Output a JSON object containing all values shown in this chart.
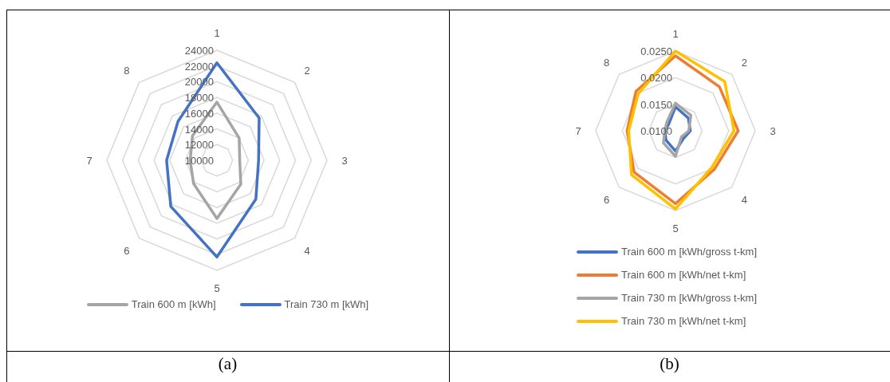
{
  "chart_data": [
    {
      "type": "radar",
      "categories": [
        "1",
        "2",
        "3",
        "4",
        "5",
        "6",
        "7",
        "8"
      ],
      "ylim": [
        10000,
        24000
      ],
      "yticks": [
        10000,
        12000,
        14000,
        16000,
        18000,
        20000,
        22000,
        24000
      ],
      "grid": true,
      "legend": "bottom",
      "marker": "none",
      "annotations": [
        "(a)"
      ],
      "series": [
        {
          "name": "Train 600 m [kWh]",
          "color": "#a5a5a5",
          "values": [
            17400,
            14000,
            12900,
            14300,
            17400,
            14200,
            13400,
            14400
          ]
        },
        {
          "name": "Train 730 m [kWh]",
          "color": "#4472c4",
          "values": [
            22400,
            17600,
            15300,
            17000,
            22300,
            18300,
            16400,
            17000
          ]
        }
      ]
    },
    {
      "type": "radar",
      "categories": [
        "1",
        "2",
        "3",
        "4",
        "5",
        "6",
        "7",
        "8"
      ],
      "ylim": [
        0.01,
        0.025
      ],
      "yticks": [
        {
          "value": 0.01,
          "label": "0.0100"
        },
        {
          "value": 0.015,
          "label": "0.0150"
        },
        {
          "value": 0.02,
          "label": "0.0200"
        },
        {
          "value": 0.025,
          "label": "0.0250"
        }
      ],
      "grid": true,
      "legend": "bottom",
      "marker": "none",
      "annotations": [
        "(b)"
      ],
      "series": [
        {
          "name": "Train 600 m [kWh/gross t-km]",
          "color": "#4472c4",
          "values": [
            0.0145,
            0.0134,
            0.0128,
            0.0121,
            0.0138,
            0.0125,
            0.012,
            0.0118
          ]
        },
        {
          "name": "Train 600 m [kWh/net t-km]",
          "color": "#ed7d31",
          "values": [
            0.0241,
            0.0217,
            0.0218,
            0.0203,
            0.0237,
            0.021,
            0.0191,
            0.0205
          ]
        },
        {
          "name": "Train 730 m [kWh/gross t-km]",
          "color": "#a5a5a5",
          "values": [
            0.0152,
            0.0141,
            0.0125,
            0.0116,
            0.0148,
            0.0132,
            0.012,
            0.0123
          ]
        },
        {
          "name": "Train 730 m [kWh/net t-km]",
          "color": "#ffc000",
          "values": [
            0.025,
            0.0231,
            0.021,
            0.0197,
            0.0247,
            0.0217,
            0.0188,
            0.0199
          ]
        }
      ]
    }
  ]
}
